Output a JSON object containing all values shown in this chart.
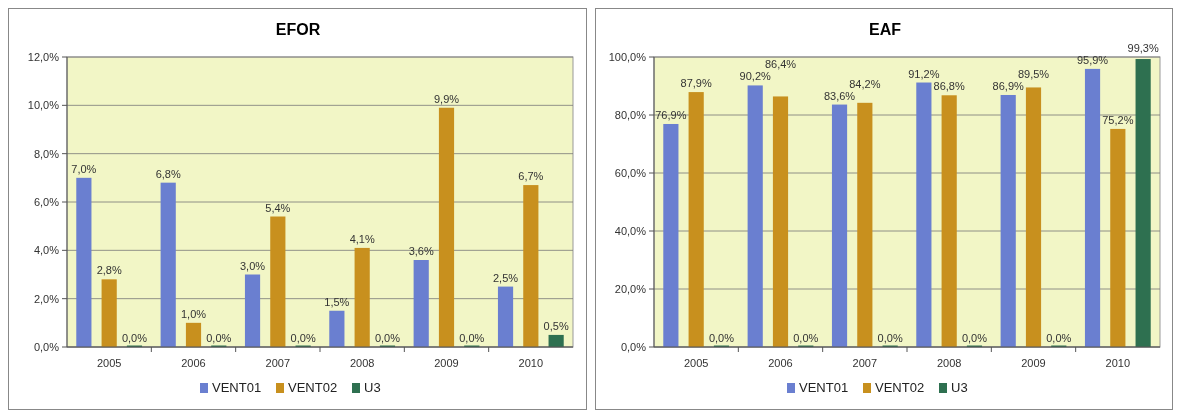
{
  "chart_data": [
    {
      "type": "bar",
      "title": "EFOR",
      "categories": [
        "2005",
        "2006",
        "2007",
        "2008",
        "2009",
        "2010"
      ],
      "series": [
        {
          "name": "VENT01",
          "color": "#6a7fd0",
          "values": [
            7.0,
            6.8,
            3.0,
            1.5,
            3.6,
            2.5
          ],
          "value_labels": [
            "7,0%",
            "6,8%",
            "3,0%",
            "1,5%",
            "3,6%",
            "2,5%"
          ]
        },
        {
          "name": "VENT02",
          "color": "#c8901e",
          "values": [
            2.8,
            1.0,
            5.4,
            4.1,
            9.9,
            6.7
          ],
          "value_labels": [
            "2,8%",
            "1,0%",
            "5,4%",
            "4,1%",
            "9,9%",
            "6,7%"
          ]
        },
        {
          "name": "U3",
          "color": "#2e7050",
          "values": [
            0.0,
            0.0,
            0.0,
            0.0,
            0.0,
            0.5
          ],
          "value_labels": [
            "0,0%",
            "0,0%",
            "0,0%",
            "0,0%",
            "0,0%",
            "0,5%"
          ]
        }
      ],
      "ylim": [
        0,
        12
      ],
      "yticks": [
        {
          "value": 0,
          "label": "0,0%"
        },
        {
          "value": 2,
          "label": "2,0%"
        },
        {
          "value": 4,
          "label": "4,0%"
        },
        {
          "value": 6,
          "label": "6,0%"
        },
        {
          "value": 8,
          "label": "8,0%"
        },
        {
          "value": 10,
          "label": "10,0%"
        },
        {
          "value": 12,
          "label": "12,0%"
        }
      ],
      "grid": "y",
      "legend": "bottom"
    },
    {
      "type": "bar",
      "title": "EAF",
      "categories": [
        "2005",
        "2006",
        "2007",
        "2008",
        "2009",
        "2010"
      ],
      "series": [
        {
          "name": "VENT01",
          "color": "#6a7fd0",
          "values": [
            76.9,
            90.2,
            83.6,
            91.2,
            86.9,
            95.9
          ],
          "value_labels": [
            "76,9%",
            "90,2%",
            "83,6%",
            "91,2%",
            "86,9%",
            "95,9%"
          ]
        },
        {
          "name": "VENT02",
          "color": "#c8901e",
          "values": [
            87.9,
            86.4,
            84.2,
            86.8,
            89.5,
            75.2
          ],
          "value_labels": [
            "87,9%",
            "86,4%",
            "84,2%",
            "86,8%",
            "89,5%",
            "75,2%"
          ]
        },
        {
          "name": "U3",
          "color": "#2e7050",
          "values": [
            0.0,
            0.0,
            0.0,
            0.0,
            0.0,
            99.3
          ],
          "value_labels": [
            "0,0%",
            "0,0%",
            "0,0%",
            "0,0%",
            "0,0%",
            "99,3%"
          ]
        }
      ],
      "ylim": [
        0,
        100
      ],
      "yticks": [
        {
          "value": 0,
          "label": "0,0%"
        },
        {
          "value": 20,
          "label": "20,0%"
        },
        {
          "value": 40,
          "label": "40,0%"
        },
        {
          "value": 60,
          "label": "60,0%"
        },
        {
          "value": 80,
          "label": "80,0%"
        },
        {
          "value": 100,
          "label": "100,0%"
        }
      ],
      "grid": "y",
      "legend": "bottom"
    }
  ]
}
